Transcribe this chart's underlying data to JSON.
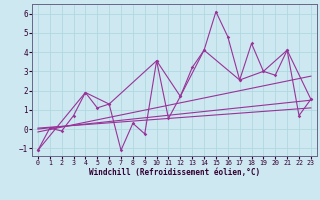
{
  "xlabel": "Windchill (Refroidissement éolien,°C)",
  "background_color": "#cde8f0",
  "line_color": "#993399",
  "grid_color": "#b0d8e0",
  "xlim": [
    -0.5,
    23.5
  ],
  "ylim": [
    -1.4,
    6.5
  ],
  "yticks": [
    -1,
    0,
    1,
    2,
    3,
    4,
    5,
    6
  ],
  "xticks": [
    0,
    1,
    2,
    3,
    4,
    5,
    6,
    7,
    8,
    9,
    10,
    11,
    12,
    13,
    14,
    15,
    16,
    17,
    18,
    19,
    20,
    21,
    22,
    23
  ],
  "s1_x": [
    0,
    1,
    2,
    3,
    4,
    5,
    6,
    7,
    8,
    9,
    10,
    11,
    12,
    13,
    14,
    15,
    16,
    17,
    18,
    19,
    20,
    21,
    22,
    23
  ],
  "s1_y": [
    -1.1,
    0.05,
    -0.1,
    0.7,
    1.9,
    1.1,
    1.3,
    -1.1,
    0.3,
    -0.25,
    3.55,
    0.55,
    1.7,
    3.2,
    4.1,
    6.1,
    4.8,
    2.55,
    4.45,
    3.0,
    2.8,
    4.1,
    0.7,
    1.55
  ],
  "trend1_x": [
    0,
    23
  ],
  "trend1_y": [
    -0.15,
    2.75
  ],
  "trend2_x": [
    0,
    23
  ],
  "trend2_y": [
    0.0,
    1.5
  ],
  "trend3_x": [
    0,
    23
  ],
  "trend3_y": [
    0.05,
    1.1
  ],
  "smooth_x": [
    0,
    4,
    6,
    10,
    12,
    14,
    17,
    19,
    21,
    23
  ],
  "smooth_y": [
    -1.1,
    1.9,
    1.3,
    3.55,
    1.7,
    4.1,
    2.55,
    3.0,
    4.1,
    1.55
  ]
}
